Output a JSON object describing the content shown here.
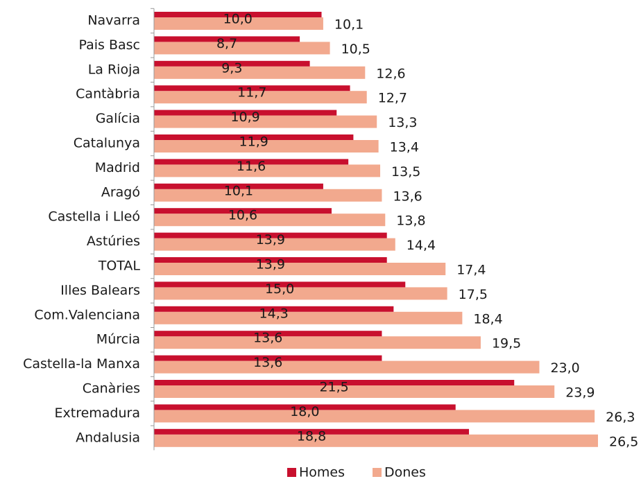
{
  "chart_data": {
    "type": "hbar",
    "categories": [
      "Navarra",
      "Pais Basc",
      "La Rioja",
      "Cantàbria",
      "Galícia",
      "Catalunya",
      "Madrid",
      "Aragó",
      "Castella i Lleó",
      "Astúries",
      "TOTAL",
      "Illes Balears",
      "Com.Valenciana",
      "Múrcia",
      "Castella-la Manxa",
      "Canàries",
      "Extremadura",
      "Andalusia"
    ],
    "series": [
      {
        "name": "Homes",
        "color": "#c8102e",
        "values": [
          10.0,
          8.7,
          9.3,
          11.7,
          10.9,
          11.9,
          11.6,
          10.1,
          10.6,
          13.9,
          13.9,
          15.0,
          14.3,
          13.6,
          13.6,
          21.5,
          18.0,
          18.8
        ],
        "value_labels": [
          "10,0",
          "8,7",
          "9,3",
          "11,7",
          "10,9",
          "11,9",
          "11,6",
          "10,1",
          "10,6",
          "13,9",
          "13,9",
          "15,0",
          "14,3",
          "13,6",
          "13,6",
          "21,5",
          "18,0",
          "18,8"
        ]
      },
      {
        "name": "Dones",
        "color": "#f2a98e",
        "values": [
          10.1,
          10.5,
          12.6,
          12.7,
          13.3,
          13.4,
          13.5,
          13.6,
          13.8,
          14.4,
          17.4,
          17.5,
          18.4,
          19.5,
          23.0,
          23.9,
          26.3,
          26.5
        ],
        "value_labels": [
          "10,1",
          "10,5",
          "12,6",
          "12,7",
          "13,3",
          "13,4",
          "13,5",
          "13,6",
          "13,8",
          "14,4",
          "17,4",
          "17,5",
          "18,4",
          "19,5",
          "23,0",
          "23,9",
          "26,3",
          "26,5"
        ]
      }
    ],
    "legend": "bottom"
  }
}
